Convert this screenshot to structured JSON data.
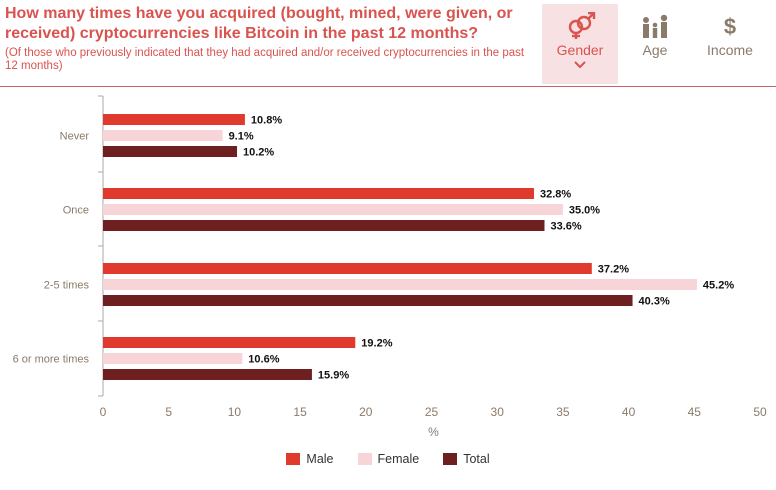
{
  "header": {
    "title": "How many times have you acquired (bought, mined, were given, or received) cryptocurrencies like Bitcoin in the past 12 months?",
    "subtitle": "(Of those who previously indicated that they had acquired and/or received cryptocurrencies in the past 12 months)"
  },
  "tabs": [
    {
      "label": "Gender",
      "icon": "gender-icon",
      "active": true
    },
    {
      "label": "Age",
      "icon": "age-icon",
      "active": false
    },
    {
      "label": "Income",
      "icon": "income-icon",
      "active": false
    }
  ],
  "colors": {
    "accent": "#d9534f",
    "male": "#e03a2e",
    "female": "#f7d4d8",
    "total": "#6e1f1f",
    "axis": "#aaaaaa",
    "tick_text": "#8a7a6a"
  },
  "chart_data": {
    "type": "bar",
    "orientation": "horizontal",
    "categories": [
      "Never",
      "Once",
      "2-5 times",
      "6 or more times"
    ],
    "series": [
      {
        "name": "Male",
        "values": [
          10.8,
          32.8,
          37.2,
          19.2
        ]
      },
      {
        "name": "Female",
        "values": [
          9.1,
          35.0,
          45.2,
          10.6
        ]
      },
      {
        "name": "Total",
        "values": [
          10.2,
          33.6,
          40.3,
          15.9
        ]
      }
    ],
    "data_labels": [
      [
        "10.8%",
        "9.1%",
        "10.2%"
      ],
      [
        "32.8%",
        "35.0%",
        "33.6%"
      ],
      [
        "37.2%",
        "45.2%",
        "40.3%"
      ],
      [
        "19.2%",
        "10.6%",
        "15.9%"
      ]
    ],
    "xlabel": "%",
    "xlim": [
      0,
      50
    ],
    "xticks": [
      "0",
      "5",
      "10",
      "15",
      "20",
      "25",
      "30",
      "35",
      "40",
      "45",
      "50"
    ],
    "grid": false,
    "legend": "bottom"
  }
}
